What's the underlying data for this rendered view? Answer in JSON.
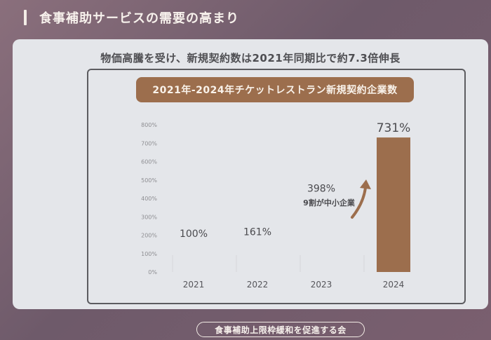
{
  "page_title": "食事補助サービスの需要の高まり",
  "headline": "物価高騰を受け、新規契約数は2021年同期比で約7.3倍伸長",
  "footer": "食事補助上限枠緩和を促進する会",
  "colors": {
    "bar": "#9c6e4d",
    "arrow": "#9c6e4d",
    "panel": "#e4e6ea"
  },
  "chart_data": {
    "type": "bar",
    "title": "2021年-2024年チケットレストラン新規契約企業数",
    "categories": [
      "2021",
      "2022",
      "2023",
      "2024"
    ],
    "values": [
      100,
      161,
      398,
      731
    ],
    "data_labels": [
      "100%",
      "161%",
      "398%",
      "731%"
    ],
    "highlighted": [
      false,
      false,
      false,
      true
    ],
    "ylim": [
      0,
      800
    ],
    "yticks": [
      "0%",
      "100%",
      "200%",
      "300%",
      "400%",
      "500%",
      "600%",
      "700%",
      "800%"
    ],
    "annotation": "9割が中小企業",
    "xlabel": "",
    "ylabel": "",
    "grid": false
  }
}
